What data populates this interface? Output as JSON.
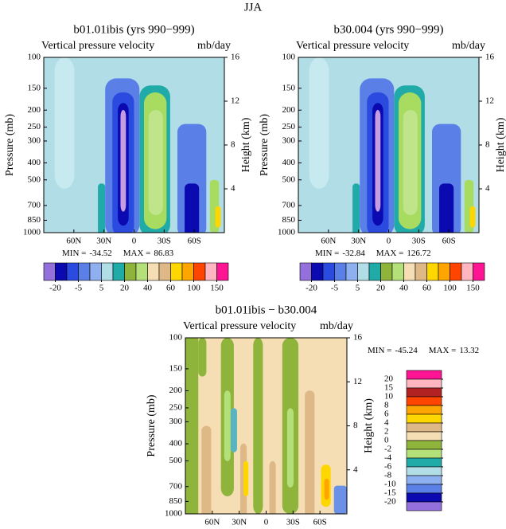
{
  "title": "JJA",
  "chart_data": [
    {
      "type": "contour",
      "title": "b01.01ibis (yrs 990−999)",
      "left_subtitle": "Vertical pressure velocity",
      "right_subtitle": "mb/day",
      "y_label": "Pressure (mb)",
      "y2_label": "Height (km)",
      "ylim": [
        1000,
        100
      ],
      "log_y": true,
      "yticks": [
        1000,
        850,
        700,
        500,
        400,
        300,
        250,
        200,
        150,
        100
      ],
      "y2lim": [
        0,
        16
      ],
      "y2ticks": [
        4,
        8,
        12,
        16
      ],
      "xlim": [
        90,
        -90
      ],
      "xticks": [
        {
          "value": 60,
          "label": "60N"
        },
        {
          "value": 30,
          "label": "30N"
        },
        0,
        {
          "value": -30,
          "label": "30S"
        },
        {
          "value": -60,
          "label": "60S"
        }
      ],
      "min_label": "MIN =",
      "min": -34.52,
      "max_label": "MAX =",
      "max": 86.83,
      "colorbar": {
        "orientation": "horizontal",
        "colors": [
          "#9370db",
          "#0a0ab0",
          "#2a4ae0",
          "#5a80e8",
          "#8fb0f0",
          "#b0dde6",
          "#20aaa8",
          "#8fb43c",
          "#b4e07a",
          "#f5deb3",
          "#deb887",
          "#ffd700",
          "#ffa500",
          "#ff4500",
          "#ffb6c1",
          "#ff1493"
        ],
        "ticks": [
          -20,
          -5,
          5,
          20,
          40,
          60,
          100,
          150
        ]
      }
    },
    {
      "type": "contour",
      "title": "b30.004 (yrs 990−999)",
      "left_subtitle": "Vertical pressure velocity",
      "right_subtitle": "mb/day",
      "y_label": "Pressure (mb)",
      "y2_label": "Height (km)",
      "ylim": [
        1000,
        100
      ],
      "log_y": true,
      "yticks": [
        1000,
        850,
        700,
        500,
        400,
        300,
        250,
        200,
        150,
        100
      ],
      "y2lim": [
        0,
        16
      ],
      "y2ticks": [
        4,
        8,
        12,
        16
      ],
      "xlim": [
        90,
        -90
      ],
      "xticks": [
        {
          "value": 60,
          "label": "60N"
        },
        {
          "value": 30,
          "label": "30N"
        },
        0,
        {
          "value": -30,
          "label": "30S"
        },
        {
          "value": -60,
          "label": "60S"
        }
      ],
      "min_label": "MIN =",
      "min": -32.84,
      "max_label": "MAX =",
      "max": 126.72,
      "colorbar": {
        "orientation": "horizontal",
        "colors": [
          "#9370db",
          "#0a0ab0",
          "#2a4ae0",
          "#5a80e8",
          "#8fb0f0",
          "#b0dde6",
          "#20aaa8",
          "#8fb43c",
          "#b4e07a",
          "#f5deb3",
          "#deb887",
          "#ffd700",
          "#ffa500",
          "#ff4500",
          "#ffb6c1",
          "#ff1493"
        ],
        "ticks": [
          -20,
          -5,
          5,
          20,
          40,
          60,
          100,
          150
        ]
      }
    },
    {
      "type": "contour",
      "title": "b01.01ibis − b30.004",
      "left_subtitle": "Vertical pressure velocity",
      "right_subtitle": "mb/day",
      "y_label": "Pressure (mb)",
      "y2_label": "Height (km)",
      "ylim": [
        1000,
        100
      ],
      "log_y": true,
      "yticks": [
        1000,
        850,
        700,
        500,
        400,
        300,
        250,
        200,
        150,
        100
      ],
      "y2lim": [
        0,
        16
      ],
      "y2ticks": [
        4,
        8,
        12,
        16
      ],
      "xlim": [
        90,
        -90
      ],
      "xticks": [
        {
          "value": 60,
          "label": "60N"
        },
        {
          "value": 30,
          "label": "30N"
        },
        0,
        {
          "value": -30,
          "label": "30S"
        },
        {
          "value": -60,
          "label": "60S"
        }
      ],
      "min_label": "MIN =",
      "min": -45.24,
      "max_label": "MAX =",
      "max": 13.32,
      "colorbar": {
        "orientation": "vertical",
        "colors": [
          "#ff1493",
          "#ffb6c1",
          "#b22222",
          "#ff4500",
          "#ffa500",
          "#ffd700",
          "#deb887",
          "#f5deb3",
          "#8fb43c",
          "#b4e07a",
          "#20aaa8",
          "#b0dde6",
          "#8fb0f0",
          "#5a80e8",
          "#0a0ab0",
          "#9370db"
        ],
        "ticks": [
          20,
          15,
          10,
          8,
          6,
          4,
          2,
          0,
          -2,
          -4,
          -6,
          -8,
          -10,
          -15,
          -20
        ]
      }
    }
  ]
}
